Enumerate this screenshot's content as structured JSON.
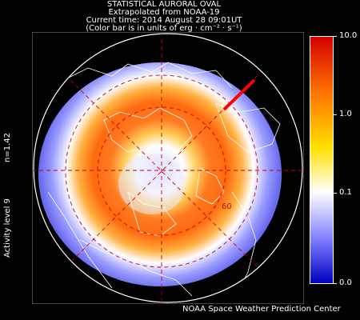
{
  "header": {
    "title": "STATISTICAL AURORAL OVAL",
    "source": "Extrapolated from NOAA-19",
    "time": "Current time: 2014 August 28 09:01UT",
    "units": "(Color bar is in units of erg · cm⁻² · s⁻¹)"
  },
  "side": {
    "activity": "Activity level 9",
    "n": "n=1.42"
  },
  "colorbar": {
    "ticks": [
      "10.0",
      "1.0",
      "0.1",
      "0.0"
    ],
    "colors": [
      "#d40000",
      "#ff7000",
      "#ffe000",
      "#ffffff",
      "#8080ff",
      "#0000c0"
    ]
  },
  "map": {
    "latitude_label": "60",
    "grid_color": "#cc0000",
    "sun_indicator_color": "#ff0000"
  },
  "footer": "NOAA Space Weather Prediction Center"
}
